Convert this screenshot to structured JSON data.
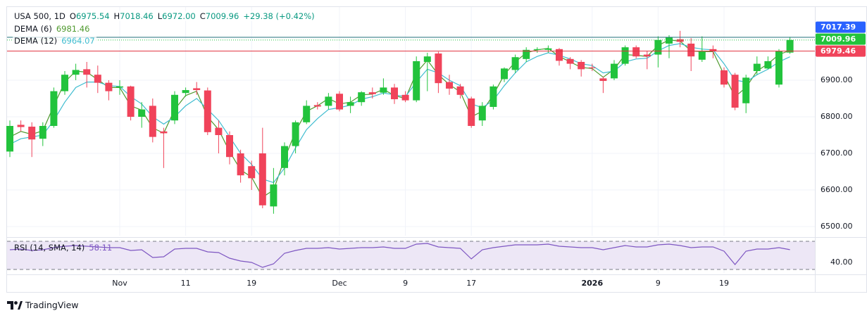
{
  "chart_data": [
    {
      "type": "candlestick",
      "legend": {
        "symbol": "USA 500, 1D",
        "fields": [
          {
            "key": "O",
            "value": "6975.54"
          },
          {
            "key": "H",
            "value": "7018.46"
          },
          {
            "key": "L",
            "value": "6972.00"
          },
          {
            "key": "C",
            "value": "7009.96"
          }
        ],
        "change": "+29.38 (+0.42%)"
      },
      "categories": [
        null,
        null,
        null,
        null,
        null,
        null,
        null,
        null,
        null,
        null,
        "Nov",
        null,
        null,
        null,
        null,
        null,
        "11",
        null,
        null,
        null,
        null,
        null,
        "19",
        null,
        null,
        null,
        null,
        null,
        null,
        null,
        "Dec",
        null,
        null,
        null,
        null,
        null,
        "9",
        null,
        null,
        null,
        null,
        null,
        "17",
        null,
        null,
        null,
        null,
        null,
        null,
        null,
        null,
        null,
        null,
        "2026",
        null,
        null,
        null,
        null,
        null,
        "9",
        null,
        null,
        null,
        null,
        null,
        "19",
        null,
        null,
        null,
        null,
        null,
        null
      ],
      "open": [
        6705,
        6778,
        6773,
        6740,
        6775,
        6870,
        6915,
        6930,
        6915,
        6893,
        6880,
        6883,
        6800,
        6830,
        6760,
        6790,
        6865,
        6878,
        6872,
        6770,
        6750,
        6700,
        6665,
        6700,
        6555,
        6660,
        6720,
        6785,
        6832,
        6830,
        6863,
        6830,
        6840,
        6867,
        6866,
        6880,
        6860,
        6845,
        6950,
        6973,
        6895,
        6883,
        6850,
        6790,
        6827,
        6903,
        6928,
        6958,
        6983,
        6983,
        6985,
        6958,
        6950,
        6935,
        6905,
        6905,
        6945,
        6990,
        6970,
        6970,
        7000,
        7012,
        7000,
        6956,
        6985,
        6927,
        6915,
        6837,
        6925,
        6932,
        6888,
        6975.54
      ],
      "high": [
        6790,
        6790,
        6785,
        6785,
        6880,
        6925,
        6945,
        6950,
        6940,
        6900,
        6900,
        6885,
        6840,
        6850,
        6770,
        6870,
        6880,
        6895,
        6880,
        6790,
        6760,
        6710,
        6680,
        6770,
        6660,
        6730,
        6790,
        6845,
        6840,
        6865,
        6870,
        6855,
        6870,
        6880,
        6905,
        6890,
        6870,
        6965,
        6975,
        6978,
        6915,
        6890,
        6855,
        6840,
        6888,
        6935,
        6970,
        6990,
        6990,
        6995,
        6988,
        6963,
        6955,
        6945,
        6910,
        6955,
        6995,
        6995,
        6980,
        7020,
        7023,
        7035,
        7015,
        7020,
        6995,
        6935,
        6920,
        6915,
        6965,
        6965,
        6985,
        7018.46
      ],
      "low": [
        6690,
        6760,
        6690,
        6720,
        6770,
        6860,
        6900,
        6880,
        6865,
        6845,
        6860,
        6790,
        6770,
        6730,
        6660,
        6780,
        6855,
        6860,
        6750,
        6700,
        6670,
        6620,
        6600,
        6550,
        6535,
        6640,
        6700,
        6780,
        6820,
        6820,
        6815,
        6810,
        6830,
        6850,
        6860,
        6835,
        6840,
        6840,
        6870,
        6865,
        6860,
        6850,
        6770,
        6775,
        6820,
        6895,
        6920,
        6950,
        6975,
        6975,
        6940,
        6930,
        6910,
        6925,
        6865,
        6900,
        6940,
        6960,
        6930,
        6935,
        6960,
        6990,
        6925,
        6950,
        6960,
        6880,
        6818,
        6810,
        6915,
        6930,
        6880,
        6972
      ],
      "close": [
        6775,
        6772,
        6738,
        6775,
        6870,
        6915,
        6928,
        6915,
        6893,
        6870,
        6883,
        6800,
        6820,
        6745,
        6755,
        6860,
        6873,
        6873,
        6758,
        6750,
        6690,
        6640,
        6632,
        6558,
        6615,
        6720,
        6785,
        6830,
        6828,
        6855,
        6820,
        6840,
        6867,
        6862,
        6880,
        6848,
        6845,
        6952,
        6965,
        6892,
        6877,
        6860,
        6775,
        6830,
        6883,
        6932,
        6963,
        6983,
        6985,
        6987,
        6953,
        6945,
        6930,
        6933,
        6898,
        6945,
        6990,
        6965,
        6965,
        7010,
        7017,
        7005,
        6965,
        6980,
        6980,
        6888,
        6825,
        6907,
        6945,
        6952,
        6980,
        7009.96
      ],
      "up_color": "#22c33c",
      "down_color": "#f0435a",
      "series": [
        {
          "name": "DEMA (6)",
          "color": "#4f9a2e",
          "values": [
            6745,
            6760,
            6752,
            6762,
            6830,
            6895,
            6925,
            6922,
            6902,
            6880,
            6880,
            6830,
            6818,
            6770,
            6755,
            6820,
            6858,
            6870,
            6800,
            6765,
            6705,
            6655,
            6635,
            6580,
            6600,
            6685,
            6760,
            6815,
            6830,
            6850,
            6835,
            6840,
            6860,
            6862,
            6875,
            6858,
            6850,
            6920,
            6955,
            6915,
            6888,
            6868,
            6800,
            6815,
            6860,
            6915,
            6950,
            6975,
            6983,
            6987,
            6965,
            6950,
            6935,
            6932,
            6908,
            6930,
            6970,
            6968,
            6965,
            6995,
            7010,
            7007,
            6980,
            6978,
            6978,
            6915,
            6855,
            6880,
            6925,
            6945,
            6970,
            6981.46
          ]
        },
        {
          "name": "DEMA (12)",
          "color": "#3fbcd0",
          "values": [
            6725,
            6740,
            6745,
            6750,
            6790,
            6840,
            6880,
            6895,
            6895,
            6885,
            6883,
            6855,
            6835,
            6800,
            6780,
            6800,
            6830,
            6850,
            6820,
            6790,
            6745,
            6700,
            6670,
            6630,
            6620,
            6660,
            6715,
            6765,
            6795,
            6820,
            6825,
            6832,
            6848,
            6855,
            6865,
            6860,
            6855,
            6895,
            6930,
            6920,
            6900,
            6885,
            6835,
            6825,
            6845,
            6885,
            6920,
            6950,
            6965,
            6975,
            6968,
            6958,
            6945,
            6940,
            6920,
            6925,
            6950,
            6958,
            6960,
            6980,
            6995,
            7000,
            6990,
            6985,
            6983,
            6945,
            6900,
            6895,
            6915,
            6930,
            6950,
            6964.07
          ]
        }
      ],
      "ylim": [
        6475,
        7100
      ],
      "yticks": [
        {
          "value": 6500,
          "label": "6500.00"
        },
        {
          "value": 6600,
          "label": "6600.00"
        },
        {
          "value": 6700,
          "label": "6700.00"
        },
        {
          "value": 6800,
          "label": "6800.00"
        },
        {
          "value": 6900,
          "label": "6900.00"
        }
      ],
      "grid": true,
      "price_tags": [
        {
          "value": 7017.39,
          "color": "#2962ff",
          "line_color": "#1f6f7a",
          "style": "solid"
        },
        {
          "value": 7009.96,
          "color": "#22c33c",
          "line_color": "#22c33c",
          "style": "dotted"
        },
        {
          "value": 6979.46,
          "color": "#f0435a",
          "line_color": "#e0303f",
          "style": "solid"
        }
      ]
    },
    {
      "type": "line",
      "name": "RSI (14, SMA, 14)",
      "color": "#7e57c2",
      "band_color": "#ede7f6",
      "values": [
        58,
        59,
        57,
        58,
        61,
        63,
        64,
        63,
        62,
        61,
        61,
        57,
        58,
        47,
        48,
        59,
        60,
        60,
        55,
        54,
        46,
        42,
        40,
        33,
        38,
        53,
        57,
        60,
        60,
        61,
        59,
        60,
        61,
        61,
        62,
        60,
        60,
        66,
        67,
        62,
        61,
        60,
        45,
        58,
        61,
        63,
        65,
        65,
        65,
        66,
        63,
        62,
        61,
        61,
        58,
        61,
        64,
        62,
        62,
        65,
        66,
        64,
        61,
        62,
        62,
        56,
        37,
        56,
        59,
        59,
        61,
        58.11
      ],
      "ylim": [
        25,
        73
      ],
      "yticks": [
        {
          "value": 40,
          "label": "40.00"
        }
      ],
      "bands": [
        70,
        30
      ]
    }
  ],
  "brand": "TradingView"
}
